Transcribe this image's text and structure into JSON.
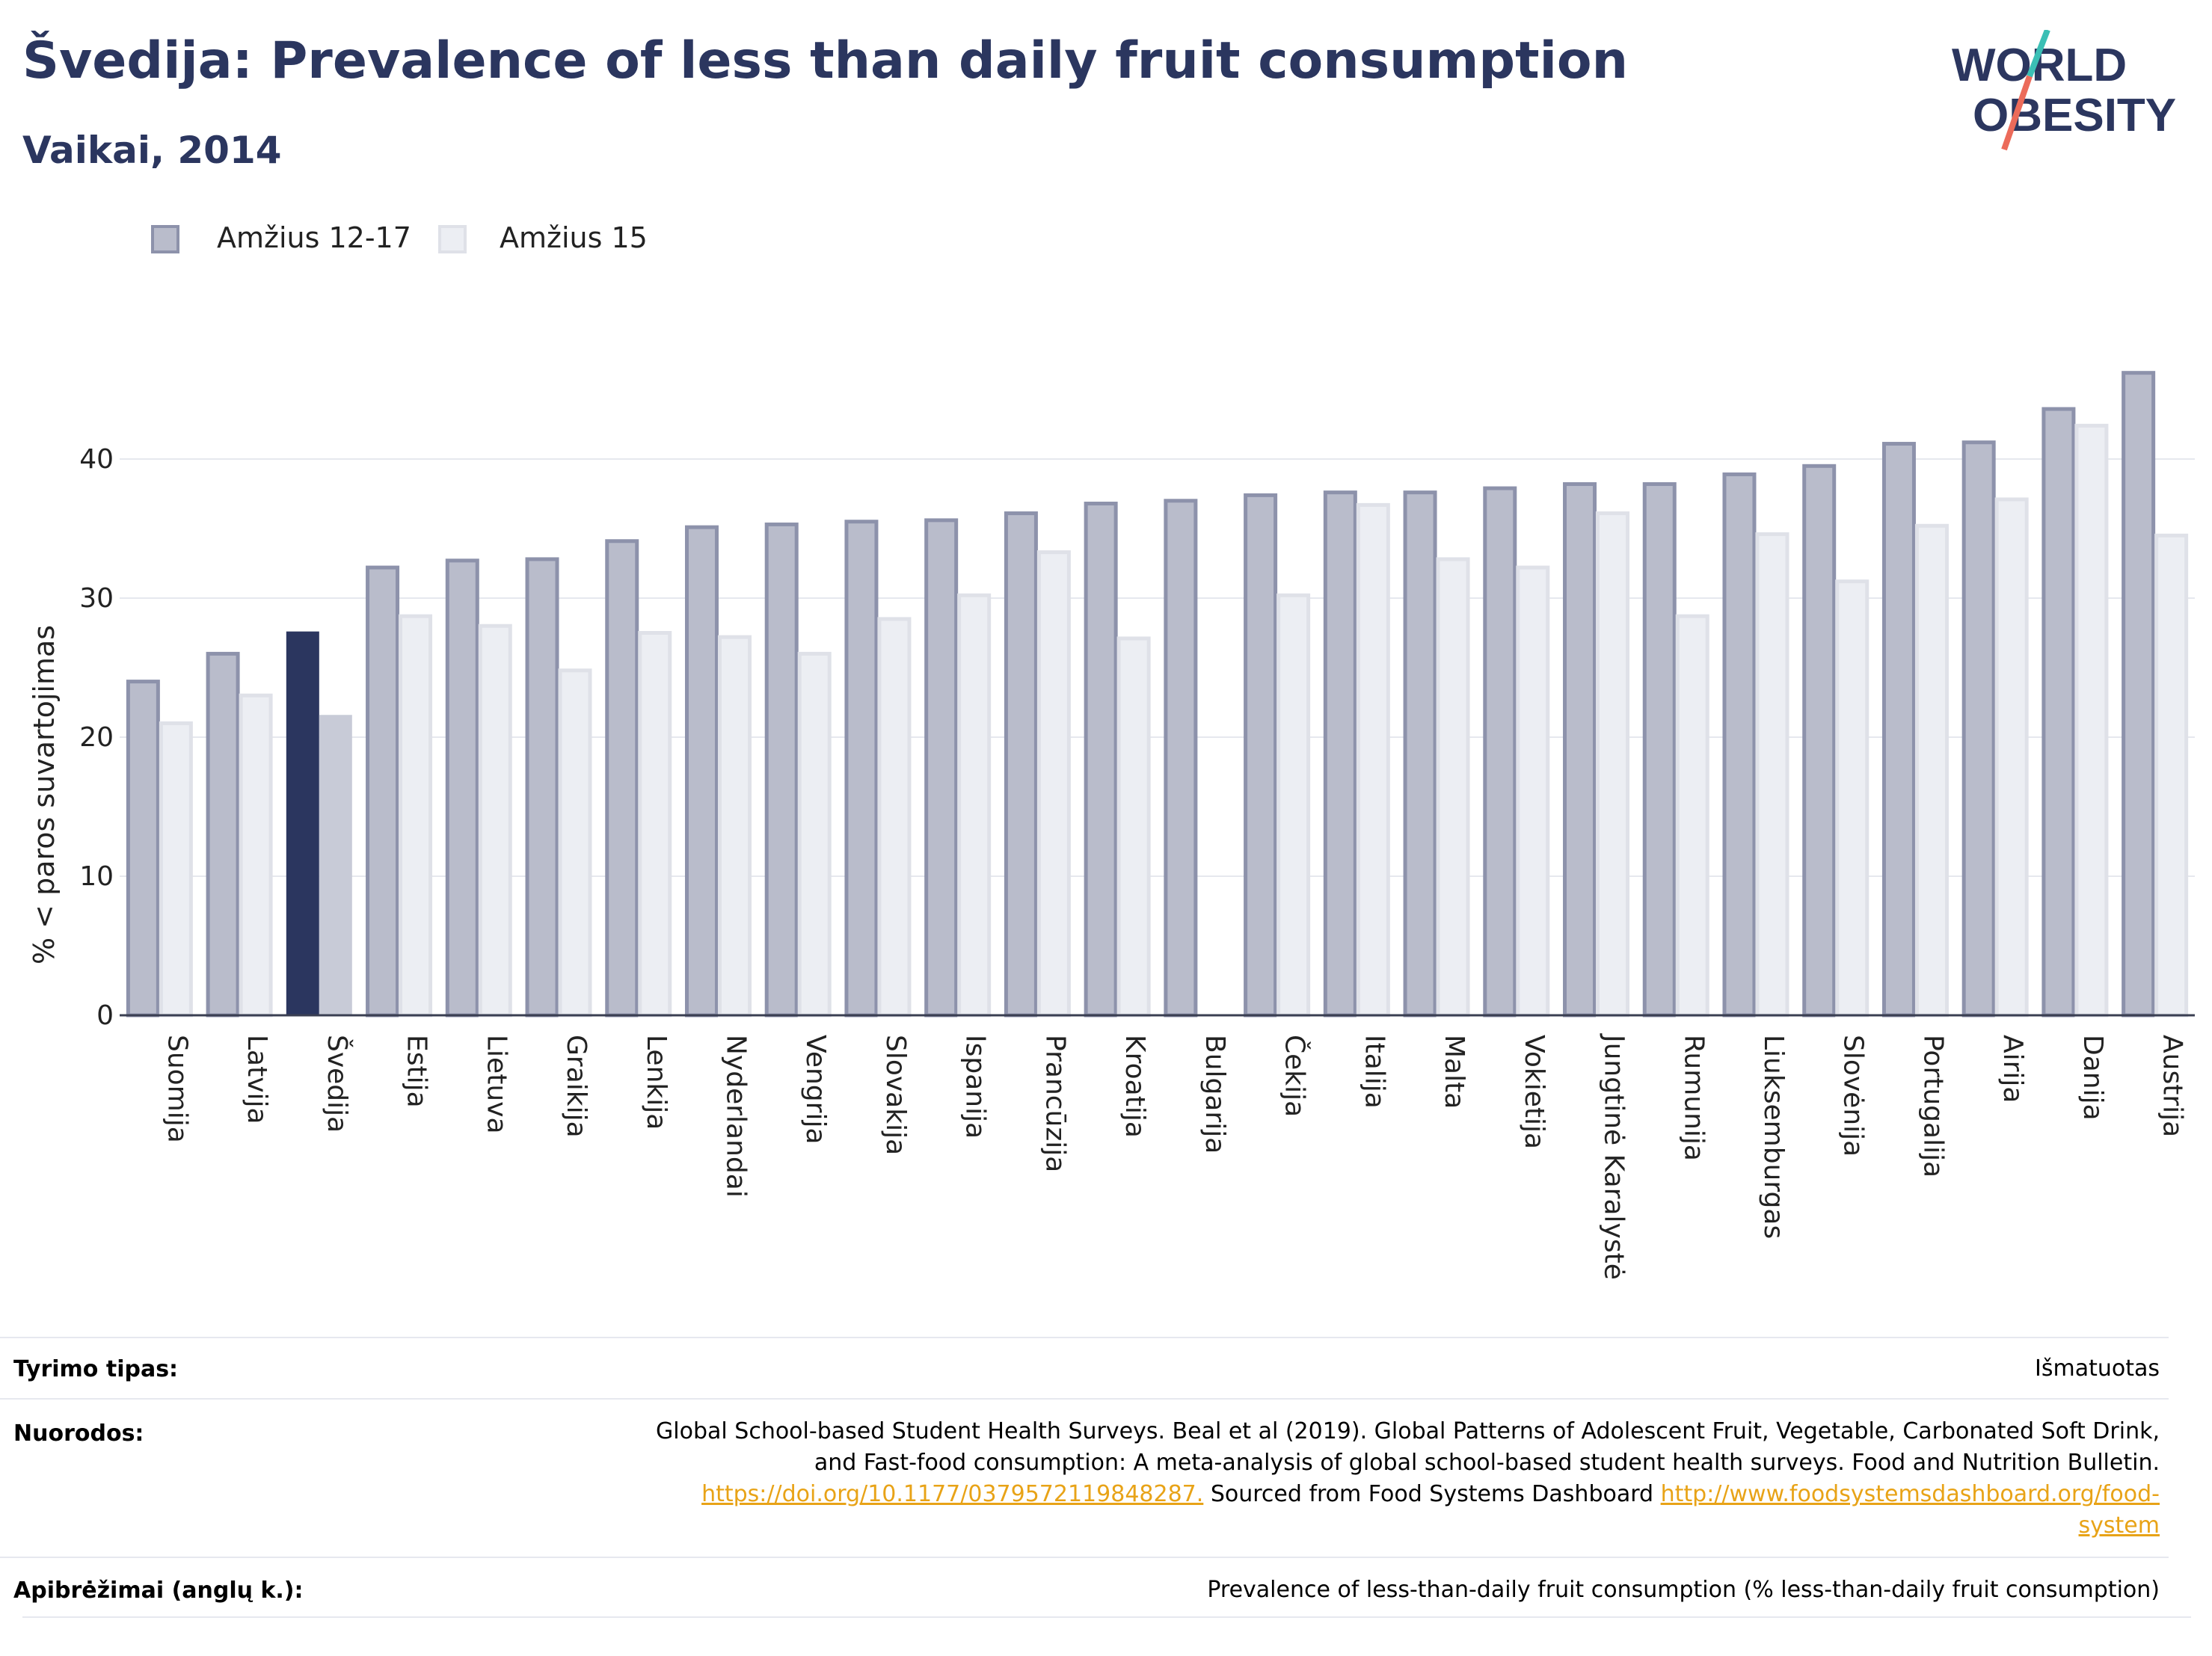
{
  "header": {
    "title": "Švedija: Prevalence of less than daily fruit consumption",
    "subtitle": "Vaikai, 2014",
    "logo_line1": "WORLD",
    "logo_line2": "OBESITY"
  },
  "colors": {
    "primary": "#2b365f",
    "series1_fill": "#b9bccb",
    "series1_stroke": "#8d92ab",
    "series2_fill": "#eceef3",
    "series2_stroke": "#dfe1e8",
    "highlight1": "#2b365f",
    "highlight2": "#c8cbd7",
    "link": "#e8a317",
    "logo_teal": "#3bbfb5",
    "logo_coral": "#ec6b5a"
  },
  "chart_data": {
    "type": "bar",
    "title": "Švedija: Prevalence of less than daily fruit consumption",
    "subtitle": "Vaikai, 2014",
    "ylabel": "% < paros suvartojimas",
    "xlabel": "",
    "ylim": [
      0,
      47.5
    ],
    "yticks": [
      0,
      10,
      20,
      30,
      40
    ],
    "grid": true,
    "legend_position": "top-left",
    "highlight_category": "Švedija",
    "categories": [
      "Suomija",
      "Latvija",
      "Švedija",
      "Estija",
      "Lietuva",
      "Graikija",
      "Lenkija",
      "Nyderlandai",
      "Vengrija",
      "Slovakija",
      "Ispanija",
      "Prancūzija",
      "Kroatija",
      "Bulgarija",
      "Čekija",
      "Italija",
      "Malta",
      "Vokietija",
      "Jungtinė Karalystė",
      "Rumunija",
      "Liuksemburgas",
      "Slovėnija",
      "Portugalija",
      "Airija",
      "Danija",
      "Austrija"
    ],
    "series": [
      {
        "name": "Amžius 12-17",
        "values": [
          24.0,
          26.0,
          27.6,
          32.2,
          32.7,
          32.8,
          34.1,
          35.1,
          35.3,
          35.5,
          35.6,
          36.1,
          36.8,
          37.0,
          37.4,
          37.6,
          37.6,
          37.9,
          38.2,
          38.2,
          38.9,
          39.5,
          41.1,
          41.2,
          43.6,
          46.2
        ]
      },
      {
        "name": "Amžius 15",
        "values": [
          21.0,
          23.0,
          21.6,
          28.7,
          28.0,
          24.8,
          27.5,
          27.2,
          26.0,
          28.5,
          30.2,
          33.3,
          27.1,
          null,
          30.2,
          36.7,
          32.8,
          32.2,
          36.1,
          28.7,
          34.6,
          31.2,
          35.2,
          37.1,
          42.4,
          34.5
        ]
      }
    ]
  },
  "info": {
    "survey_type_label": "Tyrimo tipas:",
    "survey_type_value": "Išmatuotas",
    "references_label": "Nuorodos:",
    "references_line1": "Global School-based Student Health Surveys. Beal et al (2019). Global Patterns of Adolescent Fruit, Vegetable, Carbonated Soft Drink,",
    "references_line2": "and Fast-food consumption: A meta-analysis of global school-based student health surveys. Food and Nutrition Bulletin.",
    "references_link1": "https://doi.org/10.1177/0379572119848287.",
    "references_mid": " Sourced from Food Systems Dashboard ",
    "references_link2a": "http://www.foodsystemsdashboard.org/food-",
    "references_link2b": "system",
    "definitions_label": "Apibrėžimai (anglų k.):",
    "definitions_value": "Prevalence of less-than-daily fruit consumption (% less-than-daily fruit consumption)"
  }
}
